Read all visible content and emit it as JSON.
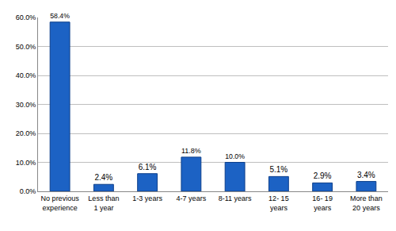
{
  "chart_data": {
    "type": "bar",
    "categories": [
      "No previous experience",
      "Less than 1 year",
      "1-3 years",
      "4-7 years",
      "8-11 years",
      "12- 15 years",
      "16- 19 years",
      "More than 20 years"
    ],
    "values": [
      58.4,
      2.4,
      6.1,
      11.8,
      10.0,
      5.1,
      2.9,
      3.4
    ],
    "value_labels": [
      "58.4%",
      "2.4%",
      "6.1%",
      "11.8%",
      "10.0%",
      "5.1%",
      "2.9%",
      "3.4%"
    ],
    "data_labels": true,
    "color": "#1c62c4",
    "ylim": [
      0,
      60
    ],
    "yticks": [
      {
        "value": 0,
        "label": "0.0%"
      },
      {
        "value": 10,
        "label": "10.0%"
      },
      {
        "value": 20,
        "label": "20.0%"
      },
      {
        "value": 30,
        "label": "30.0%"
      },
      {
        "value": 40,
        "label": "40.0%"
      },
      {
        "value": 50,
        "label": "50.0%"
      },
      {
        "value": 60,
        "label": "60.0%"
      }
    ],
    "grid": true
  }
}
